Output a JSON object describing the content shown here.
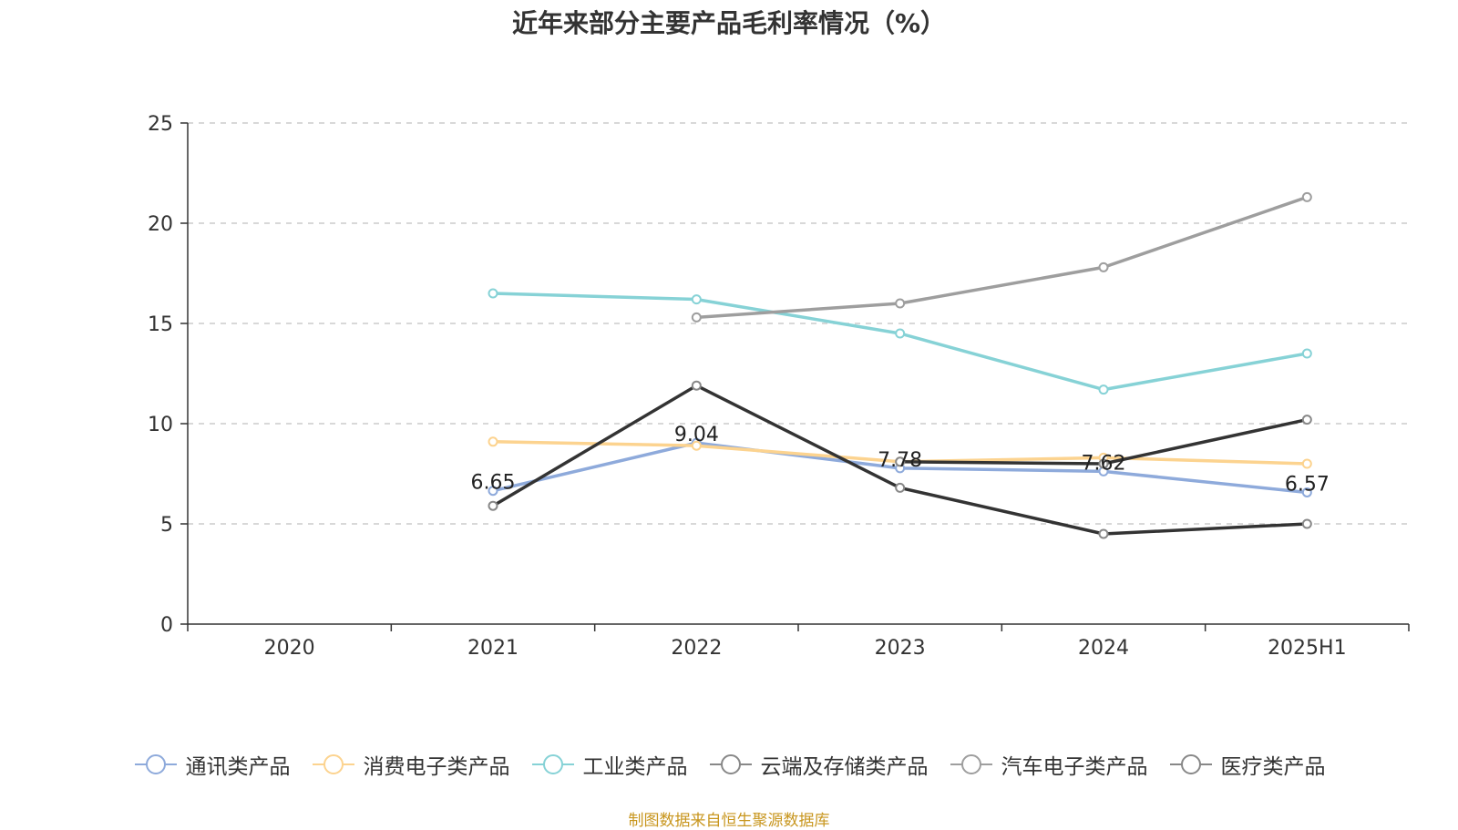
{
  "chart_data": {
    "type": "line",
    "title": "近年来部分主要产品毛利率情况（%）",
    "categories": [
      "2020",
      "2021",
      "2022",
      "2023",
      "2024",
      "2025H1"
    ],
    "ylim": [
      0,
      25
    ],
    "yticks": [
      0,
      5,
      10,
      15,
      20,
      25
    ],
    "grid": true,
    "legend_position": "bottom",
    "series": [
      {
        "name": "通讯类产品",
        "color": "#8eaadb",
        "values": [
          null,
          6.65,
          9.04,
          7.78,
          7.62,
          6.57
        ],
        "labels": [
          null,
          "6.65",
          "9.04",
          "7.78",
          "7.62",
          "6.57"
        ]
      },
      {
        "name": "消费电子类产品",
        "color": "#fcd38f",
        "values": [
          null,
          9.1,
          8.9,
          8.1,
          8.3,
          8.0
        ]
      },
      {
        "name": "工业类产品",
        "color": "#86d2d6",
        "values": [
          null,
          16.5,
          16.2,
          14.5,
          11.7,
          13.5
        ]
      },
      {
        "name": "云端及存储类产品",
        "color": "#333333",
        "values": [
          null,
          5.9,
          11.9,
          6.8,
          4.5,
          5.0
        ]
      },
      {
        "name": "汽车电子类产品",
        "color": "#9e9e9e",
        "values": [
          null,
          null,
          15.3,
          16.0,
          17.8,
          21.3
        ]
      },
      {
        "name": "医疗类产品",
        "color": "#333333",
        "values": [
          null,
          null,
          null,
          8.1,
          8.0,
          10.2
        ]
      }
    ]
  },
  "source": "制图数据来自恒生聚源数据库"
}
